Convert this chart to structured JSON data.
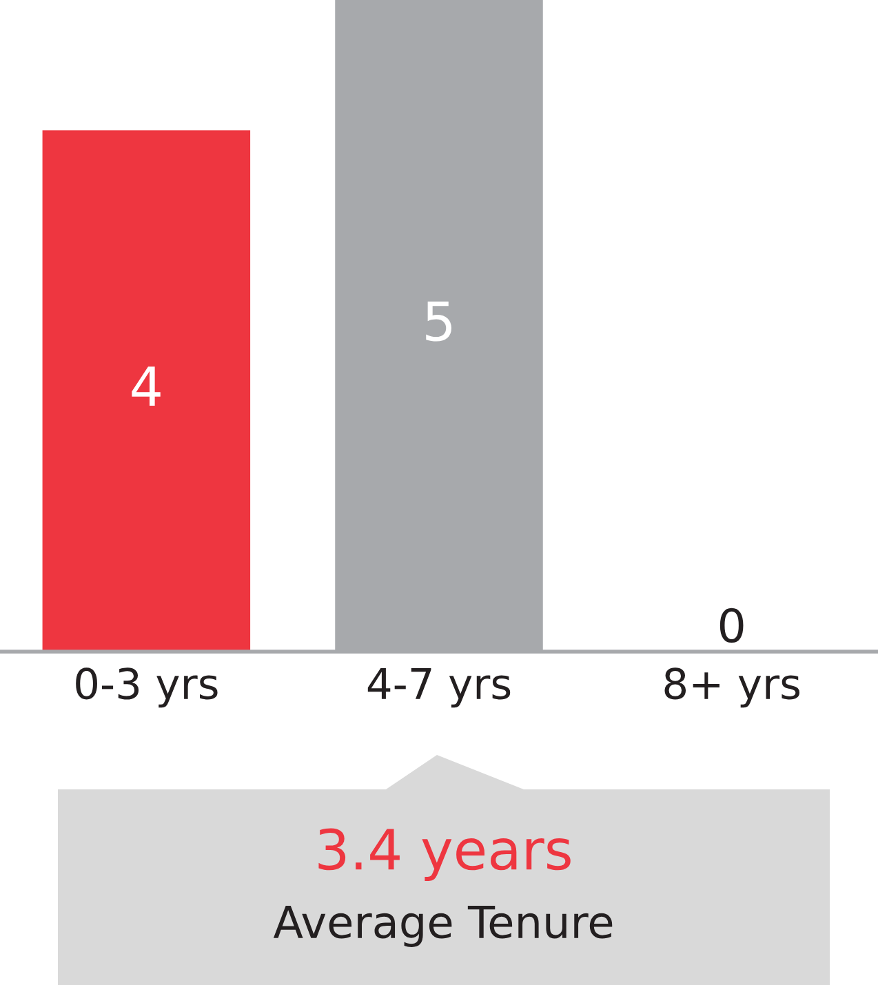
{
  "chart_data": {
    "type": "bar",
    "categories": [
      "0-3 yrs",
      "4-7 yrs",
      "8+ yrs"
    ],
    "values": [
      4,
      5,
      0
    ],
    "colors": [
      "#ee3640",
      "#a7a9ac",
      "#a7a9ac"
    ],
    "data_labels": true,
    "grid": false,
    "legend": false,
    "tick_labels": "x",
    "annotations": [
      "3.4 years",
      "Average Tenure"
    ]
  }
}
